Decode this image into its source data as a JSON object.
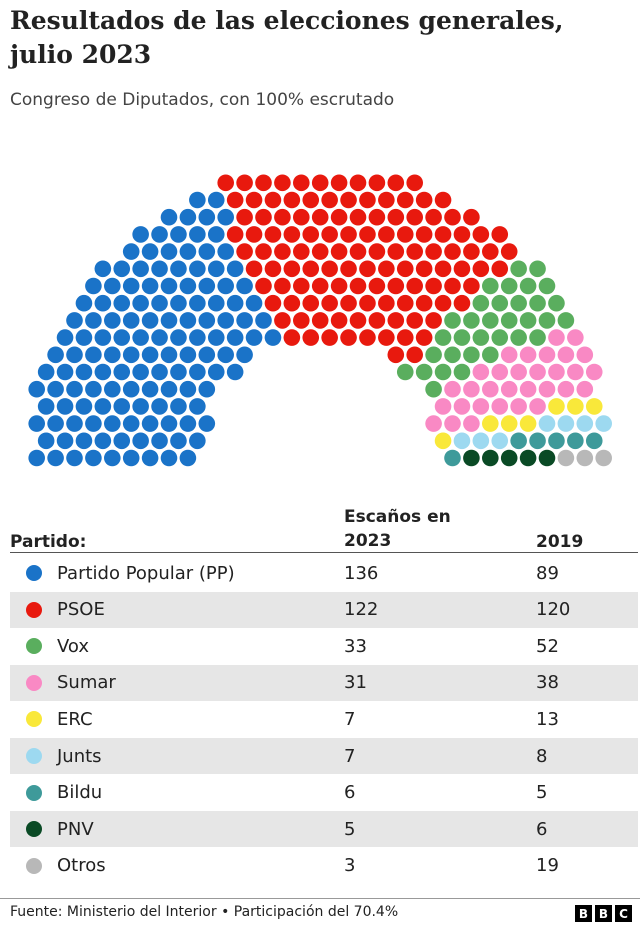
{
  "title": "Resultados de las elecciones generales, julio 2023",
  "subtitle": "Congreso de Diputados, con 100% escrutado",
  "table": {
    "header_party": "Partido:",
    "header_2023": "Escaños en 2023",
    "header_2019": "2019"
  },
  "chart_data": {
    "type": "parliament",
    "total_seats": 350,
    "parties": [
      {
        "name": "Partido Popular (PP)",
        "seats_2023": 136,
        "seats_2019": 89,
        "color": "#1a73c8"
      },
      {
        "name": "PSOE",
        "seats_2023": 122,
        "seats_2019": 120,
        "color": "#e8190e"
      },
      {
        "name": "Vox",
        "seats_2023": 33,
        "seats_2019": 52,
        "color": "#5aae5e"
      },
      {
        "name": "Sumar",
        "seats_2023": 31,
        "seats_2019": 38,
        "color": "#f989c4"
      },
      {
        "name": "ERC",
        "seats_2023": 7,
        "seats_2019": 13,
        "color": "#f9e83a"
      },
      {
        "name": "Junts",
        "seats_2023": 7,
        "seats_2019": 8,
        "color": "#9dd9f0"
      },
      {
        "name": "Bildu",
        "seats_2023": 6,
        "seats_2019": 5,
        "color": "#3e9a9a"
      },
      {
        "name": "PNV",
        "seats_2023": 5,
        "seats_2019": 6,
        "color": "#0a4a25"
      },
      {
        "name": "Otros",
        "seats_2023": 3,
        "seats_2019": 19,
        "color": "#b8b8b8"
      }
    ]
  },
  "footer": {
    "source": "Fuente: Ministerio del Interior • Participación del 70.4%",
    "logo": "BBC"
  }
}
